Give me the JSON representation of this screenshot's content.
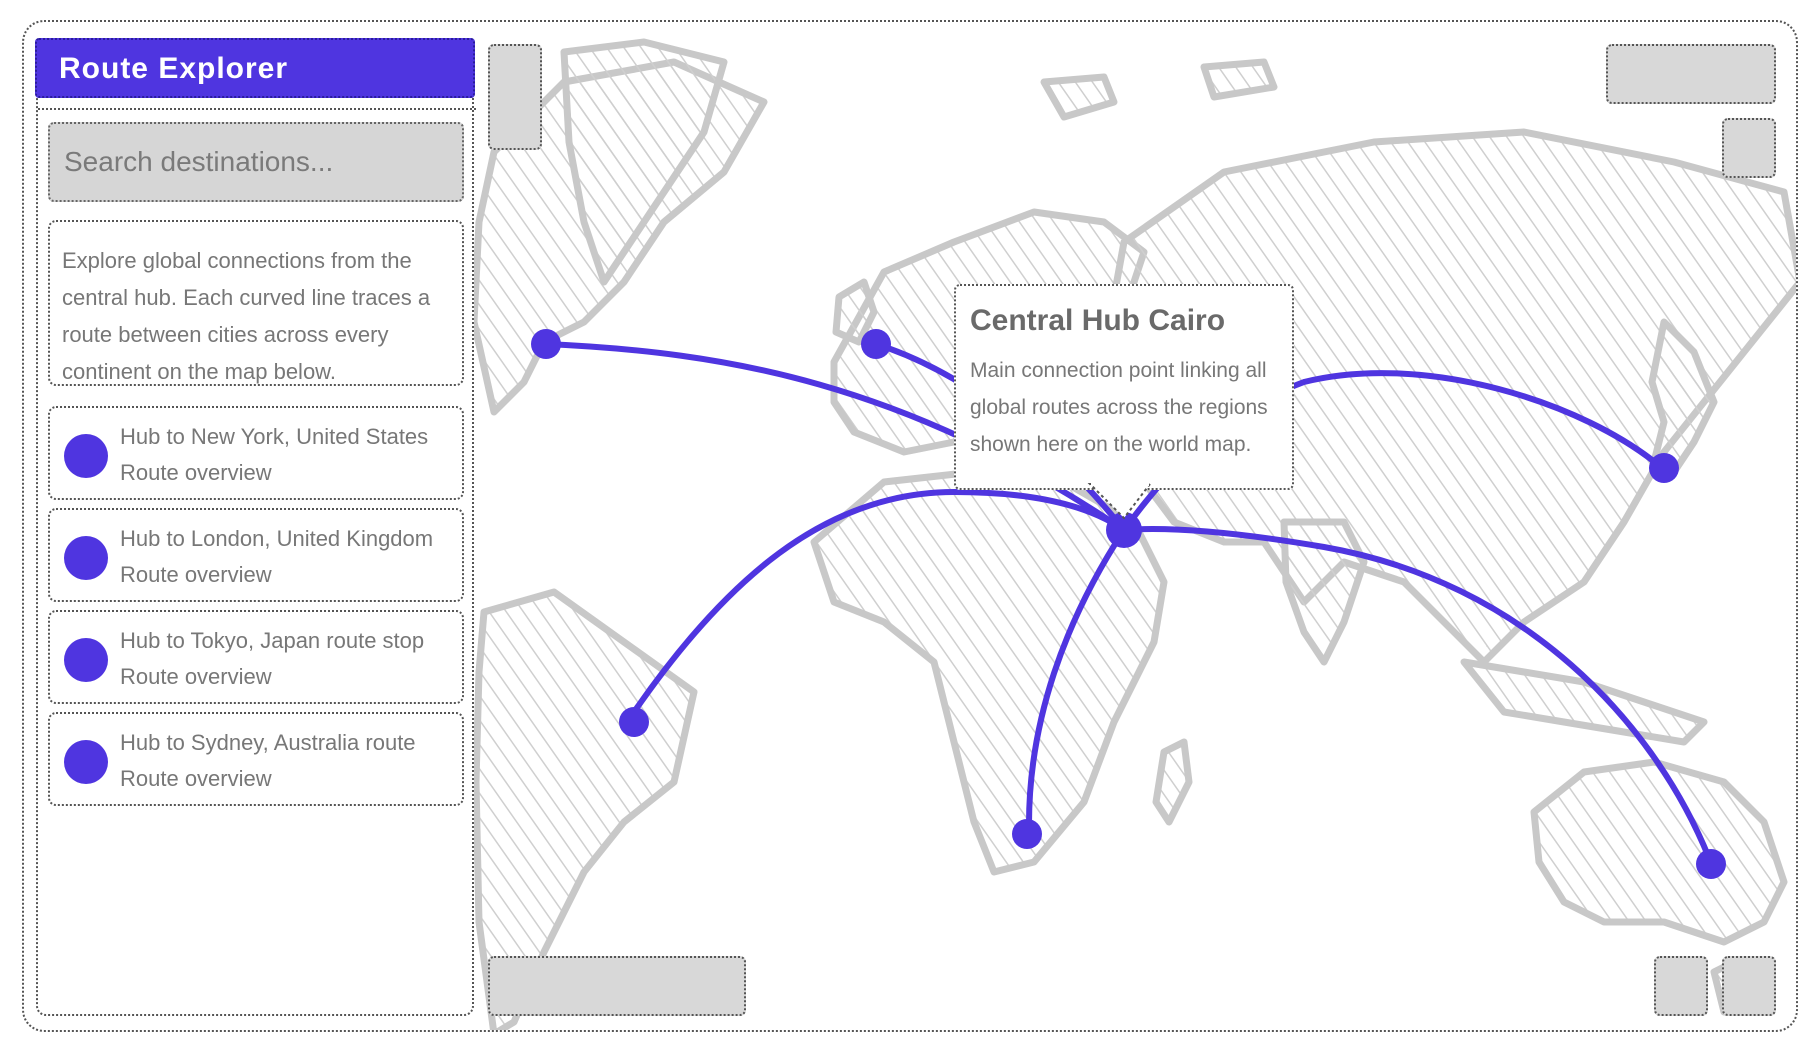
{
  "app": {
    "header_title": "Route Explorer"
  },
  "sidebar": {
    "search_placeholder": "Search destinations...",
    "description": "Explore global connections from the central hub. Each curved line traces a route between cities across every continent on the map below.",
    "routes": [
      {
        "line1": "Hub to New York, United States",
        "line2": "Route overview"
      },
      {
        "line1": "Hub to London, United Kingdom",
        "line2": "Route overview"
      },
      {
        "line1": "Hub to Tokyo, Japan route stop",
        "line2": "Route overview"
      },
      {
        "line1": "Hub to Sydney, Australia route",
        "line2": "Route overview"
      }
    ]
  },
  "popup": {
    "title": "Central Hub Cairo",
    "text": "Main connection point linking all global routes across the regions shown here on the world map."
  },
  "controls": {
    "top_right_label": "",
    "bottom_left_label": ""
  },
  "colors": {
    "accent": "#4f35e0",
    "land_stroke": "#c8c8c8",
    "land_hatch": "#cfcfcf",
    "placeholder": "#d6d6d6"
  },
  "icons": {
    "route_marker": "circle-dot-icon",
    "map_pin": "map-pin-icon"
  }
}
